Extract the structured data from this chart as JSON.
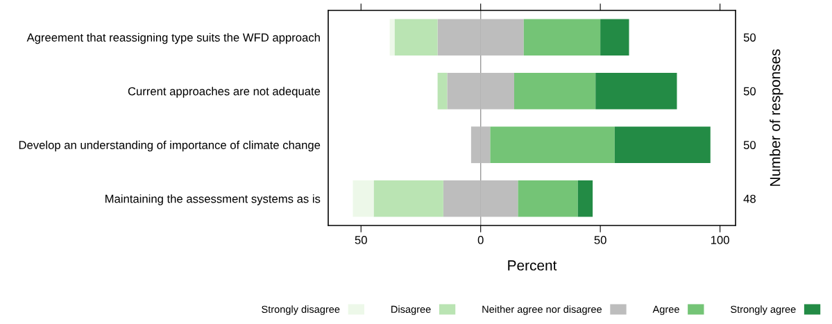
{
  "chart_data": {
    "type": "bar",
    "orientation": "horizontal",
    "stacked": true,
    "categories": [
      "Agreement that reassigning type suits the WFD approach",
      "Current approaches are not adequate",
      "Develop an understanding of importance of climate change",
      "Maintaining the assessment systems as is"
    ],
    "series": [
      {
        "name": "Neither agree nor disagree",
        "color": "#bdbdbd",
        "values": [
          -18,
          -14,
          -4,
          -15.6
        ]
      },
      {
        "name": "Disagree",
        "color": "#bae4b3",
        "values": [
          -18,
          -4,
          0,
          -29.1
        ]
      },
      {
        "name": "Strongly disagree",
        "color": "#edf8e9",
        "values": [
          -2,
          0,
          0,
          -8.7
        ]
      },
      {
        "color": "#bdbdbd",
        "values": [
          18,
          14,
          4,
          15.6
        ]
      },
      {
        "name": "Agree",
        "color": "#74c476",
        "values": [
          32,
          34,
          52,
          25
        ]
      },
      {
        "name": "Strongly agree",
        "color": "#238b45",
        "values": [
          12,
          34,
          40,
          6.2
        ]
      }
    ],
    "xlabel": "Percent",
    "y2label": "Number of responses",
    "y2_categories": [
      "50",
      "50",
      "50",
      "48"
    ],
    "xlim": [
      -63.7,
      106.5
    ],
    "xticks": [
      {
        "value": -50,
        "label": "50"
      },
      0,
      50,
      100
    ],
    "ref_lines": [
      {
        "axis": "x",
        "value": 0,
        "color": "#999999"
      }
    ],
    "legend": "bottom",
    "grid": false
  }
}
